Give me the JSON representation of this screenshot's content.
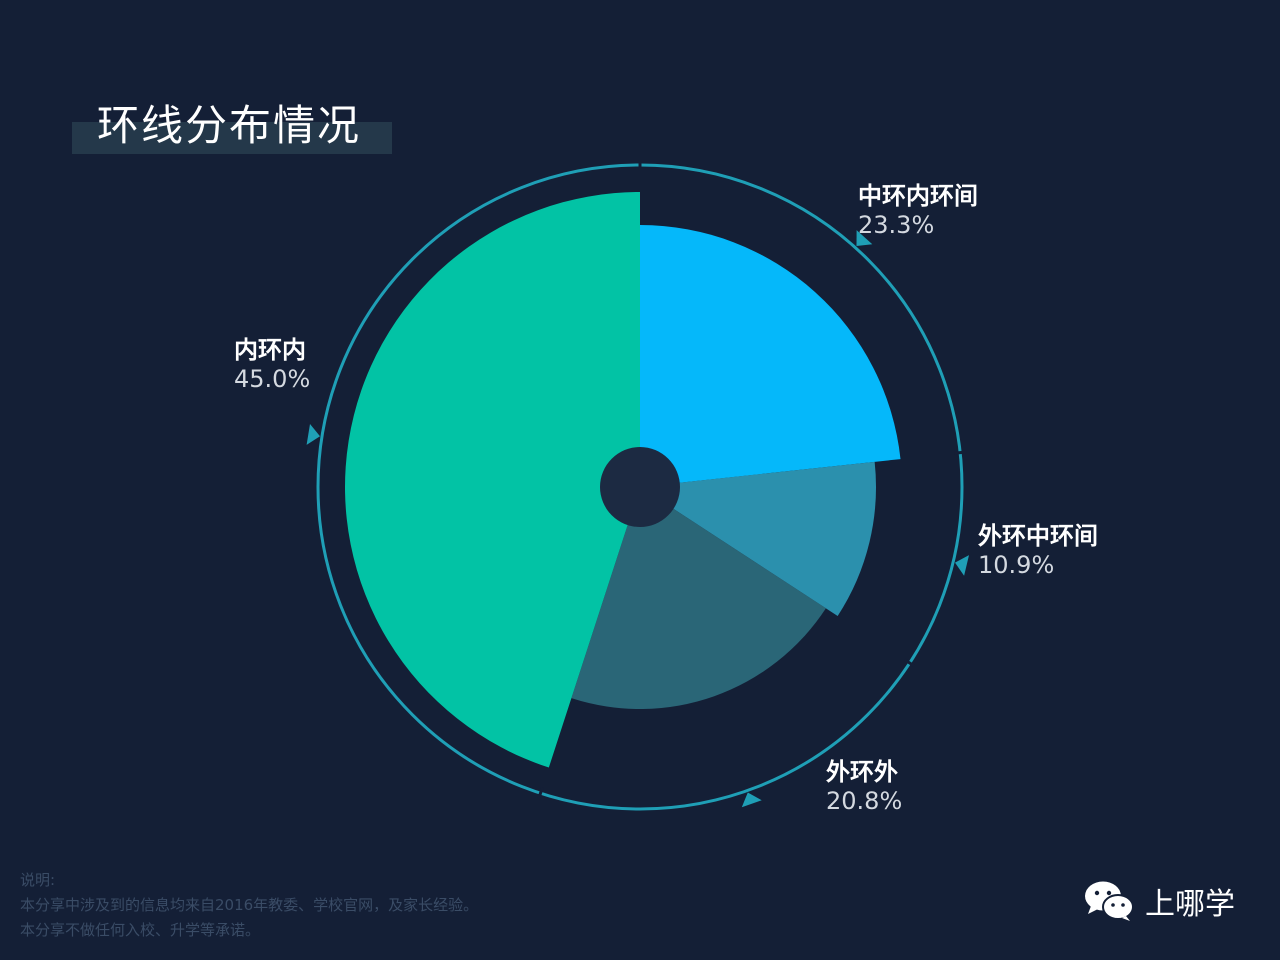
{
  "header": {
    "title": "环线分布情况"
  },
  "chart_data": {
    "type": "pie",
    "categories": [
      "中环内环间",
      "外环中环间",
      "外环外",
      "内环内"
    ],
    "values": [
      23.3,
      10.9,
      20.8,
      45.0
    ],
    "value_labels": [
      "23.3%",
      "10.9%",
      "20.8%",
      "45.0%"
    ],
    "colors": [
      "#05b8fa",
      "#2b90ad",
      "#2a6677",
      "#02c3a5"
    ],
    "title": "环线分布情况"
  },
  "note": {
    "heading": "说明:",
    "lines": [
      "本分享中涉及到的信息均来自2016年教委、学校官网，及家长经验。",
      "本分享不做任何入校、升学等承诺。"
    ]
  },
  "brand": {
    "name": "上哪学",
    "icon": "wechat-icon"
  }
}
